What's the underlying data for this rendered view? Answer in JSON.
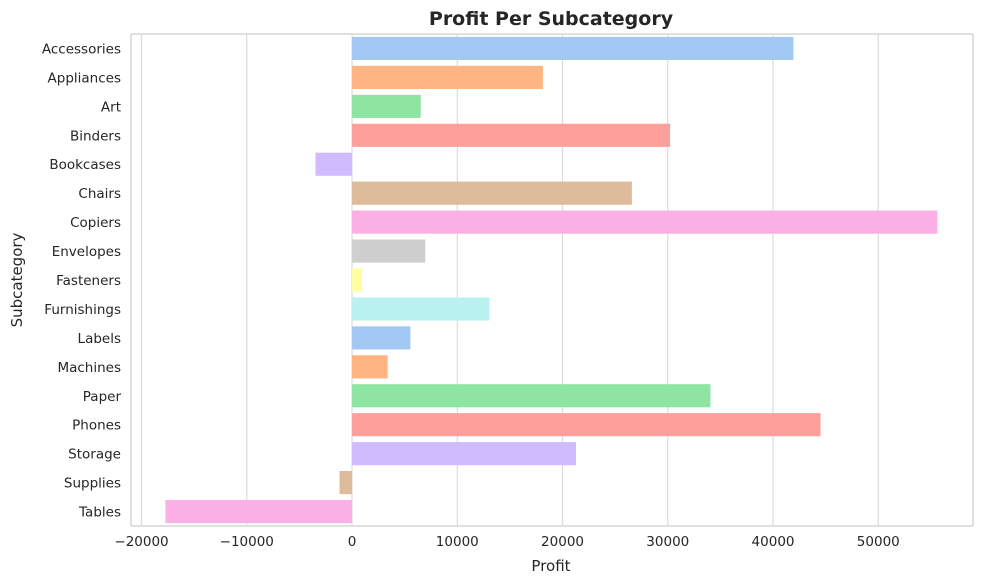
{
  "chart_data": {
    "type": "bar",
    "orientation": "horizontal",
    "title": "Profit Per Subcategory",
    "xlabel": "Profit",
    "ylabel": "Subcategory",
    "xlim": [
      -21000,
      59000
    ],
    "xticks": [
      -20000,
      -10000,
      0,
      10000,
      20000,
      30000,
      40000,
      50000
    ],
    "xtick_labels": [
      "−20000",
      "−10000",
      "0",
      "10000",
      "20000",
      "30000",
      "40000",
      "50000"
    ],
    "grid": "vertical",
    "categories": [
      "Accessories",
      "Appliances",
      "Art",
      "Binders",
      "Bookcases",
      "Chairs",
      "Copiers",
      "Envelopes",
      "Fasteners",
      "Furnishings",
      "Labels",
      "Machines",
      "Paper",
      "Phones",
      "Storage",
      "Supplies",
      "Tables"
    ],
    "values": [
      41937,
      18138,
      6528,
      30222,
      -3473,
      26590,
      55618,
      6964,
      950,
      13059,
      5546,
      3385,
      34054,
      44516,
      21279,
      -1189,
      -17725
    ],
    "colors": [
      "#a1c9f4",
      "#ffb482",
      "#8de5a1",
      "#ff9f9b",
      "#d0bbff",
      "#debb9b",
      "#fab0e4",
      "#cfcfcf",
      "#fffea3",
      "#b9f2f0",
      "#a1c9f4",
      "#ffb482",
      "#8de5a1",
      "#ff9f9b",
      "#d0bbff",
      "#debb9b",
      "#fab0e4"
    ]
  }
}
